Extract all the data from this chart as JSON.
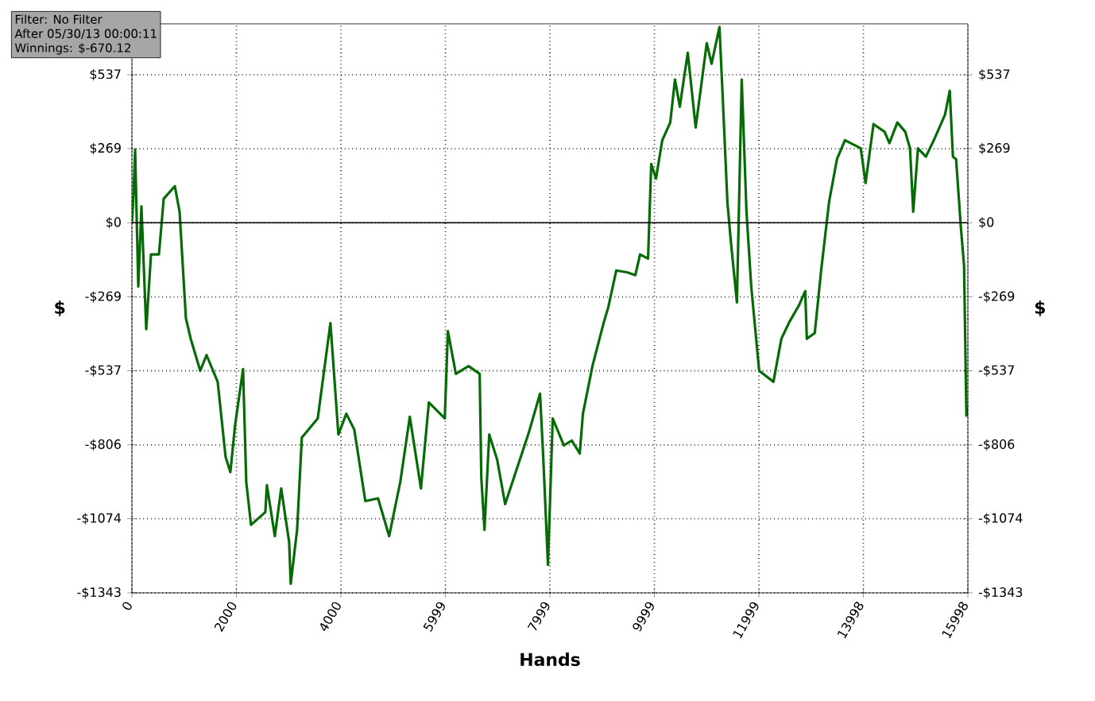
{
  "chart_data": {
    "type": "line",
    "xlabel": "Hands",
    "ylabel": "$",
    "y2label": "$",
    "annotations": [
      "Filter: No Filter",
      "After 05/30/13 00:00:11",
      "Winnings: $-670.12"
    ],
    "x": [
      0,
      30,
      61,
      122,
      182,
      274,
      365,
      517,
      608,
      821,
      912,
      1033,
      1124,
      1307,
      1428,
      1641,
      1793,
      1884,
      1975,
      2127,
      2188,
      2279,
      2553,
      2583,
      2735,
      2857,
      3009,
      3039,
      3161,
      3252,
      3556,
      3799,
      3951,
      4103,
      4255,
      4467,
      4710,
      4923,
      5136,
      5318,
      5531,
      5683,
      5987,
      6047,
      6199,
      6442,
      6655,
      6686,
      6747,
      6838,
      6990,
      7142,
      7354,
      7598,
      7810,
      7871,
      7962,
      8053,
      8266,
      8418,
      8570,
      8631,
      8813,
      9026,
      9117,
      9269,
      9482,
      9634,
      9725,
      9877,
      9938,
      10029,
      10150,
      10302,
      10393,
      10485,
      10637,
      10789,
      11001,
      11093,
      11244,
      11305,
      11396,
      11457,
      11578,
      11670,
      11761,
      11852,
      12004,
      12277,
      12429,
      12581,
      12764,
      12885,
      12916,
      13068,
      13190,
      13341,
      13493,
      13645,
      13949,
      14040,
      14192,
      14405,
      14496,
      14648,
      14800,
      14891,
      14952,
      15043,
      15195,
      15347,
      15560,
      15651,
      15712,
      15773,
      15864,
      15925,
      15955,
      15970,
      15998
    ],
    "series": [
      {
        "color": "#066b06",
        "values": [
          0,
          100,
          265,
          -231,
          60,
          -386,
          -115,
          -115,
          87,
          133,
          40,
          -346,
          -420,
          -537,
          -480,
          -577,
          -850,
          -905,
          -733,
          -531,
          -941,
          -1096,
          -1050,
          -952,
          -1137,
          -964,
          -1160,
          -1310,
          -1114,
          -779,
          -710,
          -364,
          -768,
          -693,
          -750,
          -1010,
          -1000,
          -1137,
          -940,
          -704,
          -964,
          -652,
          -710,
          -393,
          -548,
          -520,
          -548,
          -923,
          -1114,
          -768,
          -860,
          -1021,
          -900,
          -760,
          -620,
          -848,
          -1241,
          -710,
          -808,
          -790,
          -837,
          -693,
          -520,
          -364,
          -306,
          -173,
          -180,
          -190,
          -115,
          -130,
          213,
          160,
          300,
          364,
          520,
          421,
          617,
          346,
          652,
          577,
          710,
          462,
          75,
          -58,
          -289,
          520,
          40,
          -231,
          -537,
          -577,
          -421,
          -360,
          -300,
          -248,
          -421,
          -400,
          -173,
          75,
          231,
          300,
          270,
          144,
          358,
          330,
          289,
          364,
          330,
          270,
          40,
          270,
          240,
          300,
          392,
          479,
          240,
          230,
          -17,
          -156,
          -520,
          -700,
          -670.12
        ]
      }
    ],
    "xlim": [
      0,
      15998
    ],
    "xticks": [
      0,
      2000,
      4000,
      5999,
      7999,
      9999,
      11999,
      13998,
      15998
    ],
    "ylim": [
      -1343,
      722
    ],
    "yticks": [
      {
        "value": -1343,
        "label": "-$1343"
      },
      {
        "value": -1074,
        "label": "-$1074"
      },
      {
        "value": -806,
        "label": "-$806"
      },
      {
        "value": -537,
        "label": "-$537"
      },
      {
        "value": -269,
        "label": "-$269"
      },
      {
        "value": 0,
        "label": "$0"
      },
      {
        "value": 269,
        "label": "$269"
      },
      {
        "value": 537,
        "label": "$537"
      }
    ],
    "y2lim": [
      -1343,
      722
    ],
    "y2ticks": [
      {
        "value": -1343,
        "label": "-$1343"
      },
      {
        "value": -1074,
        "label": "-$1074"
      },
      {
        "value": -806,
        "label": "-$806"
      },
      {
        "value": -537,
        "label": "-$537"
      },
      {
        "value": -269,
        "label": "-$269"
      },
      {
        "value": 0,
        "label": "$0"
      },
      {
        "value": 269,
        "label": "$269"
      },
      {
        "value": 537,
        "label": "$537"
      }
    ],
    "ref_lines": [
      {
        "axis": "y",
        "value": 0,
        "color": "#000000"
      }
    ],
    "grid": true
  }
}
